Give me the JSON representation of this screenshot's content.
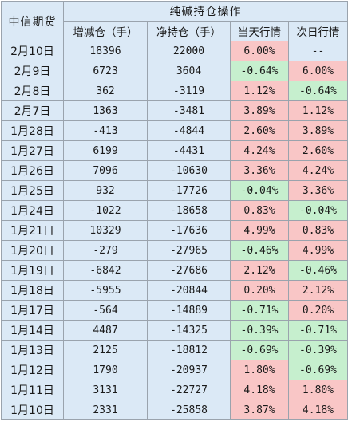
{
  "table": {
    "corner_label": "中信期货",
    "group_title": "纯碱持仓操作",
    "columns": [
      "增减仓（手）",
      "净持仓（手）",
      "当天行情",
      "次日行情"
    ],
    "colors": {
      "header": "#dbe9f6",
      "up": "#f9c6c6",
      "down": "#c6efce"
    },
    "rows": [
      {
        "date": "2月10日",
        "change": "18396",
        "net": "22000",
        "today": "6.00%",
        "today_dir": "up",
        "next": "--",
        "next_dir": "none"
      },
      {
        "date": "2月9日",
        "change": "6723",
        "net": "3604",
        "today": "-0.64%",
        "today_dir": "down",
        "next": "6.00%",
        "next_dir": "up"
      },
      {
        "date": "2月8日",
        "change": "362",
        "net": "-3119",
        "today": "1.12%",
        "today_dir": "up",
        "next": "-0.64%",
        "next_dir": "down"
      },
      {
        "date": "2月7日",
        "change": "1363",
        "net": "-3481",
        "today": "3.89%",
        "today_dir": "up",
        "next": "1.12%",
        "next_dir": "up"
      },
      {
        "date": "1月28日",
        "change": "-413",
        "net": "-4844",
        "today": "2.60%",
        "today_dir": "up",
        "next": "3.89%",
        "next_dir": "up"
      },
      {
        "date": "1月27日",
        "change": "6199",
        "net": "-4431",
        "today": "4.24%",
        "today_dir": "up",
        "next": "2.60%",
        "next_dir": "up"
      },
      {
        "date": "1月26日",
        "change": "7096",
        "net": "-10630",
        "today": "3.36%",
        "today_dir": "up",
        "next": "4.24%",
        "next_dir": "up"
      },
      {
        "date": "1月25日",
        "change": "932",
        "net": "-17726",
        "today": "-0.04%",
        "today_dir": "down",
        "next": "3.36%",
        "next_dir": "up"
      },
      {
        "date": "1月24日",
        "change": "-1022",
        "net": "-18658",
        "today": "0.83%",
        "today_dir": "up",
        "next": "-0.04%",
        "next_dir": "down"
      },
      {
        "date": "1月21日",
        "change": "10329",
        "net": "-17636",
        "today": "4.99%",
        "today_dir": "up",
        "next": "0.83%",
        "next_dir": "up"
      },
      {
        "date": "1月20日",
        "change": "-279",
        "net": "-27965",
        "today": "-0.46%",
        "today_dir": "down",
        "next": "4.99%",
        "next_dir": "up"
      },
      {
        "date": "1月19日",
        "change": "-6842",
        "net": "-27686",
        "today": "2.12%",
        "today_dir": "up",
        "next": "-0.46%",
        "next_dir": "down"
      },
      {
        "date": "1月18日",
        "change": "-5955",
        "net": "-20844",
        "today": "0.20%",
        "today_dir": "up",
        "next": "2.12%",
        "next_dir": "up"
      },
      {
        "date": "1月17日",
        "change": "-564",
        "net": "-14889",
        "today": "-0.71%",
        "today_dir": "down",
        "next": "0.20%",
        "next_dir": "up"
      },
      {
        "date": "1月14日",
        "change": "4487",
        "net": "-14325",
        "today": "-0.39%",
        "today_dir": "down",
        "next": "-0.71%",
        "next_dir": "down"
      },
      {
        "date": "1月13日",
        "change": "2125",
        "net": "-18812",
        "today": "-0.69%",
        "today_dir": "down",
        "next": "-0.39%",
        "next_dir": "down"
      },
      {
        "date": "1月12日",
        "change": "1790",
        "net": "-20937",
        "today": "1.80%",
        "today_dir": "up",
        "next": "-0.69%",
        "next_dir": "down"
      },
      {
        "date": "1月11日",
        "change": "3131",
        "net": "-22727",
        "today": "4.18%",
        "today_dir": "up",
        "next": "1.80%",
        "next_dir": "up"
      },
      {
        "date": "1月10日",
        "change": "2331",
        "net": "-25858",
        "today": "3.87%",
        "today_dir": "up",
        "next": "4.18%",
        "next_dir": "up"
      }
    ]
  }
}
